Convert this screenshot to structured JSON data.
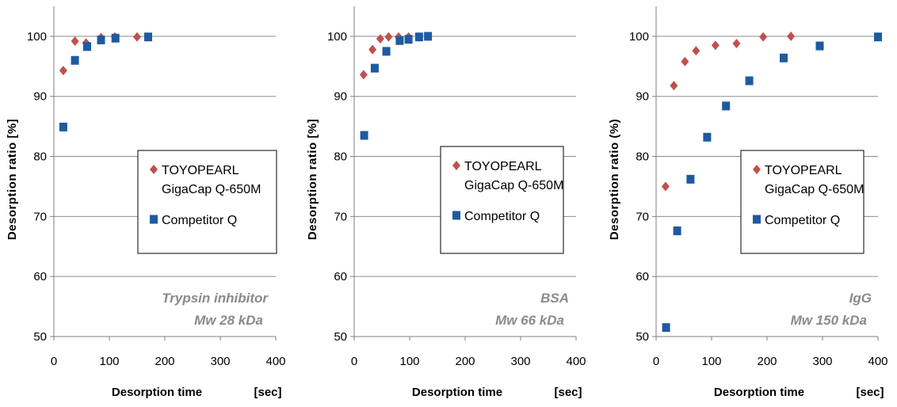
{
  "chart_data": [
    {
      "type": "scatter",
      "xlabel": "Desorption time",
      "xunit": "[sec]",
      "ylabel": "Desorption ratio [%]",
      "xlim": [
        0,
        400
      ],
      "ylim": [
        50,
        105
      ],
      "xticks": [
        0,
        100,
        200,
        300,
        400
      ],
      "yticks": [
        50,
        60,
        70,
        80,
        90,
        100
      ],
      "grid": "horizontal",
      "legend_position": "right",
      "annotation": [
        "Trypsin inhibitor",
        "Mw 28 kDa"
      ],
      "series": [
        {
          "name": "TOYOPEARL GigaCap Q-650M",
          "marker": "diamond",
          "color": "#c0504d",
          "x": [
            17,
            38,
            58,
            85,
            110,
            150
          ],
          "y": [
            94.3,
            99.2,
            98.9,
            99.8,
            99.9,
            99.9
          ]
        },
        {
          "name": "Competitor Q",
          "marker": "square",
          "color": "#1f5aa0",
          "x": [
            17,
            38,
            60,
            85,
            111,
            170
          ],
          "y": [
            84.9,
            96.0,
            98.3,
            99.4,
            99.7,
            99.9
          ]
        }
      ]
    },
    {
      "type": "scatter",
      "xlabel": "Desorption time",
      "xunit": "[sec]",
      "ylabel": "Desorption ratio [%]",
      "xlim": [
        0,
        400
      ],
      "ylim": [
        50,
        105
      ],
      "xticks": [
        0,
        100,
        200,
        300,
        400
      ],
      "yticks": [
        50,
        60,
        70,
        80,
        90,
        100
      ],
      "grid": "horizontal",
      "legend_position": "right",
      "annotation": [
        "BSA",
        "Mw 66 kDa"
      ],
      "series": [
        {
          "name": "TOYOPEARL GigaCap Q-650M",
          "marker": "diamond",
          "color": "#c0504d",
          "x": [
            17,
            33,
            47,
            62,
            80,
            98,
            117
          ],
          "y": [
            93.6,
            97.8,
            99.6,
            99.9,
            99.9,
            99.9,
            99.9
          ]
        },
        {
          "name": "Competitor Q",
          "marker": "square",
          "color": "#1f5aa0",
          "x": [
            18,
            37,
            58,
            82,
            98,
            117,
            133
          ],
          "y": [
            83.5,
            94.7,
            97.5,
            99.3,
            99.5,
            99.9,
            100.0
          ]
        }
      ]
    },
    {
      "type": "scatter",
      "xlabel": "Desorption time",
      "xunit": "[sec]",
      "ylabel": "Desorption ratio (%)",
      "xlim": [
        0,
        400
      ],
      "ylim": [
        50,
        105
      ],
      "xticks": [
        0,
        100,
        200,
        300,
        400
      ],
      "yticks": [
        50,
        60,
        70,
        80,
        90,
        100
      ],
      "grid": "horizontal",
      "legend_position": "right",
      "annotation": [
        "IgG",
        "Mw 150 kDa"
      ],
      "series": [
        {
          "name": "TOYOPEARL GigaCap Q-650M",
          "marker": "diamond",
          "color": "#c0504d",
          "x": [
            17,
            32,
            52,
            72,
            107,
            145,
            193,
            243
          ],
          "y": [
            75.0,
            91.8,
            95.8,
            97.6,
            98.5,
            98.8,
            99.9,
            100.0
          ]
        },
        {
          "name": "Competitor Q",
          "marker": "square",
          "color": "#1f5aa0",
          "x": [
            18,
            38,
            62,
            92,
            126,
            168,
            230,
            295,
            400
          ],
          "y": [
            51.5,
            67.6,
            76.2,
            83.2,
            88.4,
            92.6,
            96.4,
            98.4,
            99.9
          ]
        }
      ]
    }
  ]
}
